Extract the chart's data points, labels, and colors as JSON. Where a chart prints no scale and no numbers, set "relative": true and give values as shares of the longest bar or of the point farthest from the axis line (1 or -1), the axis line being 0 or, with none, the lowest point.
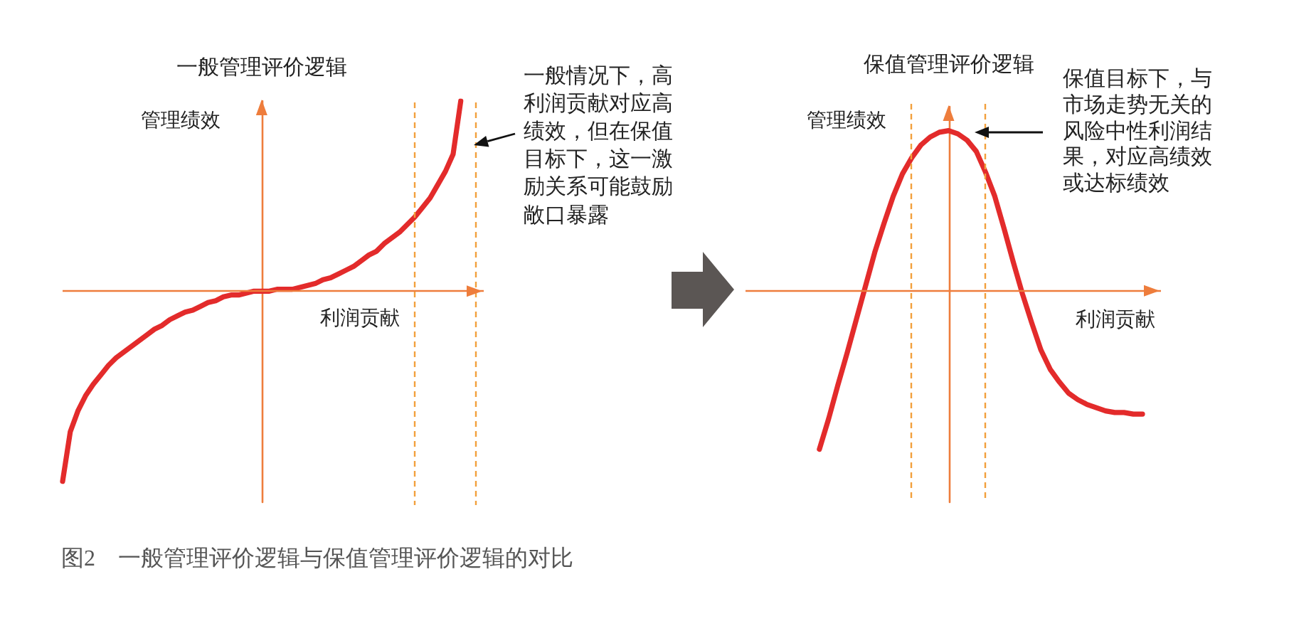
{
  "chart_data": [
    {
      "type": "line",
      "relative": true,
      "title": "一般管理评价逻辑",
      "xlabel": "利润贡献",
      "ylabel": "管理绩效",
      "tick_labels": false,
      "line_style": "solid",
      "color": "#e32b2b",
      "categories": [
        null,
        null,
        null,
        null,
        null,
        null,
        null,
        null,
        null,
        null,
        null,
        null,
        null,
        null,
        null,
        null,
        null,
        null,
        null,
        null,
        null,
        null,
        null,
        null,
        null,
        null,
        null,
        null,
        null,
        null,
        null,
        null,
        null,
        null,
        null,
        null,
        null,
        null,
        null,
        null,
        null,
        null,
        null,
        null,
        null,
        null,
        null,
        null,
        null,
        null,
        null,
        null,
        null,
        null,
        null,
        null
      ],
      "values": [
        -1,
        -0.74,
        -0.63,
        -0.55,
        -0.49,
        -0.44,
        -0.39,
        -0.35,
        -0.32,
        -0.29,
        -0.26,
        -0.23,
        -0.2,
        -0.18,
        -0.15,
        -0.13,
        -0.11,
        -0.1,
        -0.08,
        -0.06,
        -0.05,
        -0.03,
        -0.02,
        -0.02,
        -0.01,
        0,
        0,
        0,
        0.01,
        0.01,
        0.01,
        0.02,
        0.03,
        0.04,
        0.06,
        0.07,
        0.09,
        0.11,
        0.13,
        0.16,
        0.19,
        0.21,
        0.25,
        0.28,
        0.31,
        0.35,
        0.39,
        0.44,
        0.49,
        0.56,
        0.63,
        0.72,
        1,
        null,
        null,
        null
      ],
      "ref_lines": [
        {
          "axis": "y",
          "value": 0,
          "color": "#ee7d3c",
          "line_style": "solid"
        }
      ],
      "annotations": [
        "一般情况下，高利润贡献对应高绩效，但在保值目标下，这一激励关系可能鼓励敞口暴露",
        "图2　一般管理评价逻辑与保值管理评价逻辑的对比"
      ]
    },
    {
      "type": "line",
      "relative": true,
      "title": "保值管理评价逻辑",
      "xlabel": "利润贡献",
      "ylabel": "管理绩效",
      "tick_labels": false,
      "line_style": "solid",
      "color": "#e32b2b",
      "categories": [
        null,
        null,
        null,
        null,
        null,
        null,
        null,
        null,
        null,
        null,
        null,
        null,
        null,
        null,
        null,
        null,
        null,
        null,
        null,
        null,
        null,
        null,
        null,
        null,
        null,
        null,
        null,
        null,
        null,
        null,
        null,
        null,
        null,
        null,
        null,
        null,
        null,
        null,
        null,
        null,
        null,
        null,
        null,
        null,
        null,
        null
      ],
      "values": [
        null,
        null,
        null,
        null,
        null,
        null,
        null,
        null,
        -0.99,
        -0.8,
        -0.59,
        -0.39,
        -0.18,
        0.03,
        0.24,
        0.42,
        0.59,
        0.73,
        0.83,
        0.91,
        0.96,
        0.99,
        1,
        0.98,
        0.94,
        0.87,
        0.74,
        0.59,
        0.39,
        0.18,
        -0.02,
        -0.2,
        -0.37,
        -0.49,
        -0.57,
        -0.64,
        -0.68,
        -0.71,
        -0.73,
        -0.75,
        -0.76,
        -0.76,
        -0.77,
        -0.77,
        null,
        null
      ],
      "ref_lines": [
        {
          "axis": "y",
          "value": 0,
          "color": "#ee7d3c",
          "line_style": "solid"
        }
      ],
      "annotations": [
        "保值目标下，与市场走势无关的风险中性利润结果，对应高绩效或达标绩效"
      ]
    }
  ]
}
